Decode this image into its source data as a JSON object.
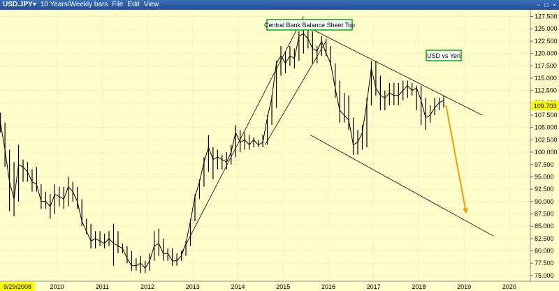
{
  "window": {
    "symbol": "USD.JPY",
    "chevron": "▾",
    "period": "10 Years/Weekly bars",
    "menu": [
      "File",
      "Edit",
      "View"
    ],
    "controls": [
      "−",
      "□",
      "×"
    ]
  },
  "chart_data": {
    "type": "line",
    "annotations": {
      "top_label": "Central Bank Balance Sheet Top",
      "pair_label": "USD vs Yen",
      "date_label": "9/29/2008",
      "last_value": "109.703"
    },
    "y_ticks": [
      "127.500",
      "125.000",
      "122.500",
      "120.000",
      "117.500",
      "115.000",
      "112.500",
      "110.000",
      "107.500",
      "105.000",
      "102.500",
      "100.000",
      "97.500",
      "95.000",
      "92.500",
      "90.000",
      "87.500",
      "85.000",
      "82.500",
      "80.000",
      "77.500",
      "75.000"
    ],
    "x_ticks": [
      "2010",
      "2011",
      "2012",
      "2013",
      "2014",
      "2015",
      "2016",
      "2017",
      "2018",
      "2019",
      "2020"
    ],
    "ylim": [
      74,
      128
    ],
    "xlim": [
      2008.74,
      2020.45
    ],
    "x": [
      2008.75,
      2008.85,
      2008.95,
      2009.05,
      2009.15,
      2009.25,
      2009.35,
      2009.45,
      2009.55,
      2009.65,
      2009.75,
      2009.85,
      2009.95,
      2010.05,
      2010.15,
      2010.25,
      2010.35,
      2010.45,
      2010.55,
      2010.65,
      2010.75,
      2010.85,
      2010.95,
      2011.05,
      2011.15,
      2011.25,
      2011.35,
      2011.45,
      2011.55,
      2011.65,
      2011.75,
      2011.85,
      2011.95,
      2012.05,
      2012.15,
      2012.25,
      2012.35,
      2012.45,
      2012.55,
      2012.65,
      2012.75,
      2012.85,
      2012.95,
      2013.05,
      2013.15,
      2013.25,
      2013.35,
      2013.45,
      2013.55,
      2013.65,
      2013.75,
      2013.85,
      2013.95,
      2014.05,
      2014.15,
      2014.25,
      2014.35,
      2014.45,
      2014.55,
      2014.65,
      2014.75,
      2014.85,
      2014.95,
      2015.05,
      2015.15,
      2015.25,
      2015.35,
      2015.45,
      2015.55,
      2015.65,
      2015.75,
      2015.85,
      2015.95,
      2016.05,
      2016.15,
      2016.25,
      2016.35,
      2016.45,
      2016.55,
      2016.65,
      2016.75,
      2016.85,
      2016.95,
      2017.05,
      2017.15,
      2017.25,
      2017.35,
      2017.45,
      2017.55,
      2017.65,
      2017.75,
      2017.85,
      2017.95,
      2018.05,
      2018.15,
      2018.25,
      2018.35,
      2018.45,
      2018.55
    ],
    "close": [
      106.0,
      100.5,
      94.0,
      90.5,
      97.5,
      97.0,
      96.0,
      94.0,
      93.5,
      90.0,
      90.0,
      89.0,
      91.5,
      91.0,
      90.5,
      93.0,
      92.0,
      90.0,
      86.0,
      84.0,
      82.0,
      82.5,
      82.0,
      81.5,
      82.5,
      81.5,
      81.0,
      80.5,
      78.5,
      77.0,
      77.0,
      77.5,
      76.5,
      78.0,
      81.0,
      81.5,
      79.5,
      79.5,
      78.0,
      78.0,
      79.0,
      81.5,
      86.0,
      91.0,
      94.0,
      98.0,
      101.0,
      98.5,
      99.0,
      98.5,
      98.0,
      100.0,
      104.0,
      102.0,
      102.5,
      101.5,
      102.5,
      101.5,
      102.0,
      107.0,
      111.0,
      118.0,
      119.5,
      118.0,
      119.5,
      119.0,
      123.5,
      124.0,
      123.0,
      121.0,
      120.5,
      122.5,
      120.0,
      118.0,
      113.0,
      108.5,
      107.5,
      106.5,
      101.5,
      102.0,
      104.0,
      110.0,
      117.0,
      113.0,
      111.5,
      111.0,
      112.0,
      111.5,
      111.5,
      112.5,
      113.5,
      112.5,
      113.0,
      110.5,
      107.0,
      107.5,
      109.0,
      110.0,
      110.5
    ],
    "high": [
      108.0,
      106.0,
      100.5,
      98.0,
      101.5,
      98.5,
      98.0,
      96.5,
      97.0,
      93.5,
      92.0,
      91.5,
      93.5,
      93.0,
      93.0,
      95.0,
      94.0,
      93.0,
      90.5,
      86.5,
      85.5,
      84.0,
      84.0,
      83.5,
      84.0,
      85.5,
      84.0,
      81.5,
      81.0,
      80.0,
      78.5,
      79.0,
      78.0,
      79.5,
      84.0,
      84.5,
      82.5,
      80.5,
      80.5,
      79.5,
      80.0,
      82.0,
      86.5,
      91.5,
      94.5,
      99.0,
      103.5,
      101.0,
      100.5,
      99.5,
      100.0,
      101.5,
      105.5,
      104.5,
      104.0,
      103.5,
      103.0,
      102.5,
      103.5,
      107.5,
      111.5,
      118.5,
      121.5,
      120.5,
      121.5,
      121.0,
      124.5,
      125.5,
      125.0,
      124.5,
      121.5,
      123.5,
      123.0,
      121.5,
      118.0,
      114.5,
      112.0,
      111.5,
      107.0,
      104.5,
      105.5,
      111.0,
      118.5,
      118.5,
      115.5,
      112.5,
      114.0,
      114.0,
      114.0,
      114.5,
      114.5,
      114.0,
      113.5,
      113.5,
      111.0,
      109.5,
      111.0,
      111.0,
      111.5
    ],
    "low": [
      104.0,
      97.0,
      88.0,
      87.0,
      90.0,
      94.0,
      94.0,
      92.0,
      92.0,
      88.5,
      88.5,
      86.5,
      87.5,
      89.0,
      88.5,
      89.0,
      90.0,
      88.5,
      85.0,
      83.5,
      80.5,
      80.5,
      81.0,
      80.5,
      81.0,
      77.0,
      79.5,
      79.5,
      77.5,
      76.0,
      76.0,
      75.5,
      75.5,
      76.0,
      78.0,
      79.0,
      78.0,
      78.0,
      77.0,
      77.0,
      78.0,
      79.0,
      81.0,
      86.0,
      90.5,
      93.0,
      96.0,
      94.5,
      96.5,
      96.5,
      96.5,
      97.5,
      99.0,
      100.0,
      100.5,
      100.5,
      101.0,
      101.0,
      101.0,
      101.5,
      105.5,
      109.0,
      115.5,
      116.0,
      117.5,
      117.0,
      118.5,
      120.0,
      121.0,
      118.0,
      118.0,
      119.5,
      119.5,
      117.5,
      111.0,
      106.0,
      106.0,
      104.5,
      99.5,
      99.5,
      100.5,
      101.0,
      109.5,
      111.5,
      108.5,
      108.5,
      109.5,
      109.5,
      109.5,
      110.5,
      111.0,
      111.5,
      108.5,
      105.5,
      104.5,
      106.0,
      107.5,
      108.5,
      109.0
    ],
    "trendlines": [
      {
        "x": [
          2012.75,
          2015.45
        ],
        "y": [
          79.5,
          127.5
        ]
      },
      {
        "x": [
          2014.6,
          2015.95
        ],
        "y": [
          101.5,
          122.5
        ]
      },
      {
        "x": [
          2015.4,
          2019.4
        ],
        "y": [
          126.0,
          107.5
        ]
      },
      {
        "x": [
          2015.6,
          2019.65
        ],
        "y": [
          103.5,
          83.0
        ]
      }
    ],
    "arrow": {
      "x": [
        2018.6,
        2019.05
      ],
      "y": [
        109.5,
        87.5
      ],
      "color": "#ff9900"
    },
    "colors": {
      "background": "#ffffcc",
      "bars": "#000000",
      "label_border": "#00b000",
      "price_tag": "#ffff00"
    }
  }
}
